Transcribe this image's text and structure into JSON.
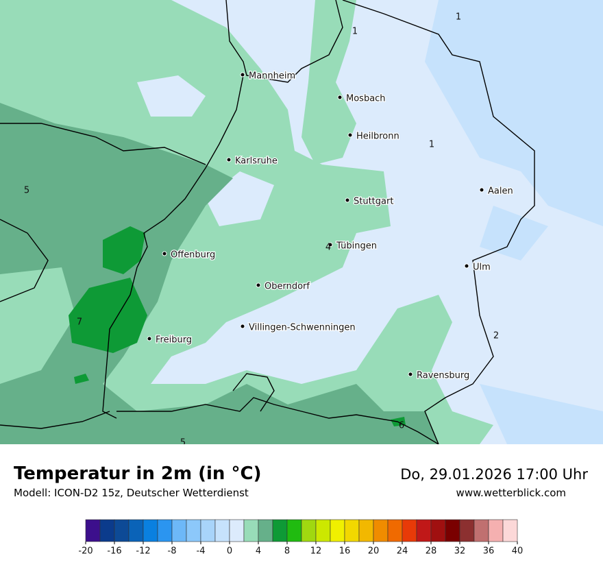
{
  "map": {
    "cities": [
      "Mannheim",
      "Mosbach",
      "Heilbronn",
      "Karlsruhe",
      "Aalen",
      "Stuttgart",
      "Tübingen",
      "Offenburg",
      "Ulm",
      "Oberndorf",
      "Villingen-Schwenningen",
      "Freiburg",
      "Ravensburg"
    ],
    "labels": [
      1,
      1,
      1,
      5,
      4,
      7,
      2,
      5,
      6
    ]
  },
  "legend": {
    "title": "Temperatur in 2m (in °C)",
    "model": "Modell: ICON-D2 15z, Deutscher Wetterdienst",
    "date": "Do, 29.01.2026 17:00 Uhr",
    "site": "www.wetterblick.com",
    "colors": [
      "#3c0f8c",
      "#0b3b8c",
      "#0d4a96",
      "#0a63b8",
      "#0a80e0",
      "#2b95f0",
      "#6db8f8",
      "#8cc8fa",
      "#a8d4fa",
      "#c6e2fc",
      "#dcebfc",
      "#98dcb8",
      "#66b08a",
      "#0e9a36",
      "#20bb10",
      "#a0d810",
      "#cce800",
      "#f0f000",
      "#f2d800",
      "#f2b800",
      "#f08c00",
      "#f06a00",
      "#e83a08",
      "#c01818",
      "#a01010",
      "#7a0000",
      "#8c3030",
      "#c07070",
      "#f5b0b0",
      "#fcd8d8"
    ],
    "ticks": [
      -20,
      -16,
      -12,
      -8,
      -4,
      0,
      4,
      8,
      12,
      16,
      20,
      24,
      28,
      32,
      36,
      40
    ]
  }
}
